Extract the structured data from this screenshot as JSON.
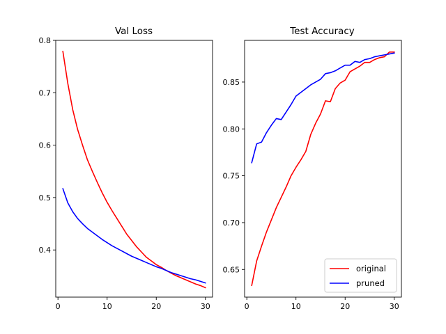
{
  "chart_data": [
    {
      "type": "line",
      "title": "Val Loss",
      "xlabel": "",
      "ylabel": "",
      "xlim": [
        -0.45,
        31.45
      ],
      "ylim": [
        0.31,
        0.8
      ],
      "xticks": [
        0,
        10,
        20,
        30
      ],
      "yticks": [
        0.4,
        0.5,
        0.6,
        0.7,
        0.8
      ],
      "ytick_labels": [
        "0.4",
        "0.5",
        "0.6",
        "0.7",
        "0.8"
      ],
      "grid": false,
      "x": [
        1,
        2,
        3,
        4,
        5,
        6,
        7,
        8,
        9,
        10,
        11,
        12,
        13,
        14,
        15,
        16,
        17,
        18,
        19,
        20,
        21,
        22,
        23,
        24,
        25,
        26,
        27,
        28,
        29,
        30
      ],
      "series": [
        {
          "color": "#ff0000",
          "values": [
            0.779,
            0.718,
            0.668,
            0.63,
            0.6,
            0.572,
            0.55,
            0.529,
            0.509,
            0.491,
            0.475,
            0.46,
            0.445,
            0.43,
            0.418,
            0.406,
            0.396,
            0.386,
            0.379,
            0.372,
            0.367,
            0.361,
            0.356,
            0.351,
            0.347,
            0.343,
            0.339,
            0.335,
            0.332,
            0.328
          ]
        },
        {
          "color": "#0000ff",
          "values": [
            0.517,
            0.49,
            0.473,
            0.46,
            0.45,
            0.441,
            0.434,
            0.427,
            0.42,
            0.414,
            0.408,
            0.403,
            0.398,
            0.393,
            0.388,
            0.384,
            0.38,
            0.376,
            0.372,
            0.368,
            0.365,
            0.361,
            0.357,
            0.354,
            0.351,
            0.348,
            0.345,
            0.343,
            0.34,
            0.337
          ]
        }
      ]
    },
    {
      "type": "line",
      "title": "Test Accuracy",
      "xlabel": "",
      "ylabel": "",
      "xlim": [
        -0.45,
        31.45
      ],
      "ylim": [
        0.6205,
        0.8945
      ],
      "xticks": [
        0,
        10,
        20,
        30
      ],
      "yticks": [
        0.65,
        0.7,
        0.75,
        0.8,
        0.85
      ],
      "ytick_labels": [
        "0.65",
        "0.70",
        "0.75",
        "0.80",
        "0.85"
      ],
      "grid": false,
      "legend": "lower-right",
      "x": [
        1,
        2,
        3,
        4,
        5,
        6,
        7,
        8,
        9,
        10,
        11,
        12,
        13,
        14,
        15,
        16,
        17,
        18,
        19,
        20,
        21,
        22,
        23,
        24,
        25,
        26,
        27,
        28,
        29,
        30
      ],
      "series": [
        {
          "name": "original",
          "color": "#ff0000",
          "values": [
            0.633,
            0.659,
            0.675,
            0.69,
            0.703,
            0.716,
            0.727,
            0.738,
            0.75,
            0.759,
            0.767,
            0.776,
            0.794,
            0.806,
            0.816,
            0.83,
            0.829,
            0.843,
            0.849,
            0.852,
            0.861,
            0.864,
            0.867,
            0.871,
            0.871,
            0.874,
            0.876,
            0.877,
            0.882,
            0.882
          ]
        },
        {
          "name": "pruned",
          "color": "#0000ff",
          "values": [
            0.764,
            0.784,
            0.786,
            0.796,
            0.804,
            0.811,
            0.81,
            0.818,
            0.826,
            0.835,
            0.839,
            0.843,
            0.847,
            0.85,
            0.853,
            0.859,
            0.86,
            0.862,
            0.865,
            0.868,
            0.868,
            0.872,
            0.871,
            0.874,
            0.875,
            0.877,
            0.878,
            0.879,
            0.88,
            0.881
          ]
        }
      ]
    }
  ]
}
